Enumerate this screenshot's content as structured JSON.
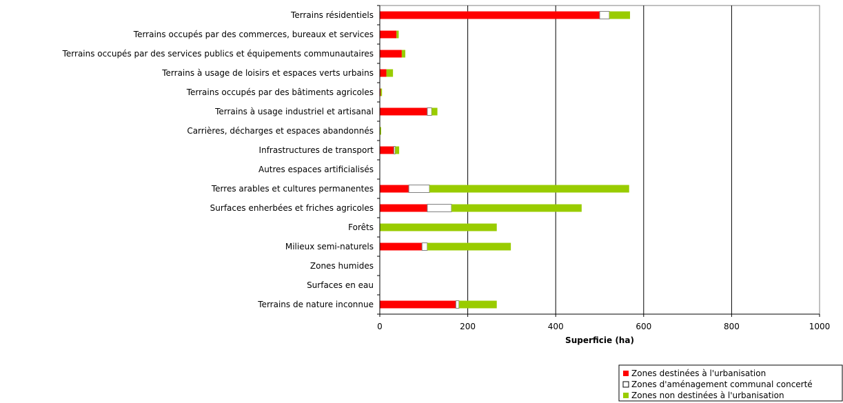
{
  "chart_data": {
    "type": "bar",
    "orientation": "horizontal",
    "stacked": true,
    "categories": [
      "Terrains résidentiels",
      "Terrains occupés par des commerces, bureaux et services",
      "Terrains occupés par des services publics et équipements communautaires",
      "Terrains à usage de loisirs et espaces verts urbains",
      "Terrains occupés par des bâtiments agricoles",
      "Terrains à usage industriel et artisanal",
      "Carrières, décharges et espaces abandonnés",
      "Infrastructures de transport",
      "Autres espaces artificialisés",
      "Terres arables et cultures permanentes",
      "Surfaces enherbées et friches agricoles",
      "Forêts",
      "Milieux semi-naturels",
      "Zones humides",
      "Surfaces en eau",
      "Terrains de nature inconnue"
    ],
    "series": [
      {
        "name": "Zones destinées à l'urbanisation",
        "color": "#ff0000",
        "values": [
          500,
          38,
          50,
          15,
          2,
          108,
          0,
          32,
          0,
          66,
          108,
          0,
          96,
          0,
          0,
          173
        ]
      },
      {
        "name": "Zones d'aménagement communal concerté",
        "color": "#ffffff",
        "values": [
          22,
          0,
          0,
          0,
          0,
          10,
          0,
          3,
          0,
          47,
          55,
          0,
          12,
          0,
          0,
          7
        ]
      },
      {
        "name": "Zones non destinées à l'urbanisation",
        "color": "#99cc00",
        "values": [
          47,
          5,
          8,
          15,
          3,
          13,
          3,
          9,
          0,
          454,
          296,
          266,
          190,
          0,
          0,
          86
        ]
      }
    ],
    "x_ticks": [
      "0",
      "200",
      "400",
      "600",
      "800",
      "1000"
    ],
    "xlim": [
      0,
      1000
    ],
    "xlabel": "Superficie (ha)",
    "grid": "vertical",
    "legend_position": "bottom-right"
  }
}
